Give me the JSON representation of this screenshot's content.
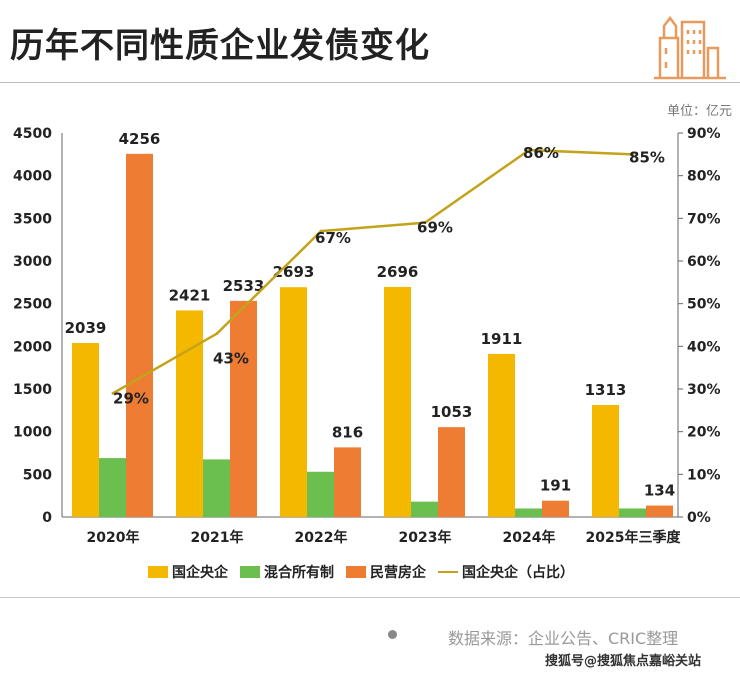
{
  "title": "历年不同性质企业发债变化",
  "unit": "单位：亿元",
  "source": "数据来源：企业公告、CRIC整理",
  "credit": "搜狐号@搜狐焦点嘉峪关站",
  "colors": {
    "soe": "#f5b800",
    "mixed": "#6bbf4e",
    "private": "#ee7d33",
    "line": "#c2a31a"
  },
  "chart_data": {
    "type": "bar",
    "title": "历年不同性质企业发债变化",
    "categories": [
      "2020年",
      "2021年",
      "2022年",
      "2023年",
      "2024年",
      "2025年三季度"
    ],
    "series": [
      {
        "name": "国企央企",
        "values": [
          2039,
          2421,
          2693,
          2696,
          1911,
          1313
        ],
        "labels": [
          "2039",
          "2421",
          "2693",
          "2696",
          "1911",
          "1313"
        ]
      },
      {
        "name": "混合所有制",
        "values": [
          690,
          675,
          530,
          180,
          100,
          100
        ],
        "labels": []
      },
      {
        "name": "民营房企",
        "values": [
          4256,
          2533,
          816,
          1053,
          191,
          134
        ],
        "labels": [
          "4256",
          "2533",
          "816",
          "1053",
          "191",
          "134"
        ]
      },
      {
        "name": "国企央企（占比）",
        "type": "line",
        "axis": "right",
        "values": [
          29,
          43,
          67,
          69,
          86,
          85
        ],
        "labels": [
          "29%",
          "43%",
          "67%",
          "69%",
          "86%",
          "85%"
        ]
      }
    ],
    "ylim": [
      0,
      4500
    ],
    "yticks": [
      "0",
      "500",
      "1000",
      "1500",
      "2000",
      "2500",
      "3000",
      "3500",
      "4000",
      "4500"
    ],
    "y2lim": [
      0,
      90
    ],
    "y2ticks": [
      "0%",
      "10%",
      "20%",
      "30%",
      "40%",
      "50%",
      "60%",
      "70%",
      "80%",
      "90%"
    ],
    "grid": false,
    "legend": "bottom"
  }
}
